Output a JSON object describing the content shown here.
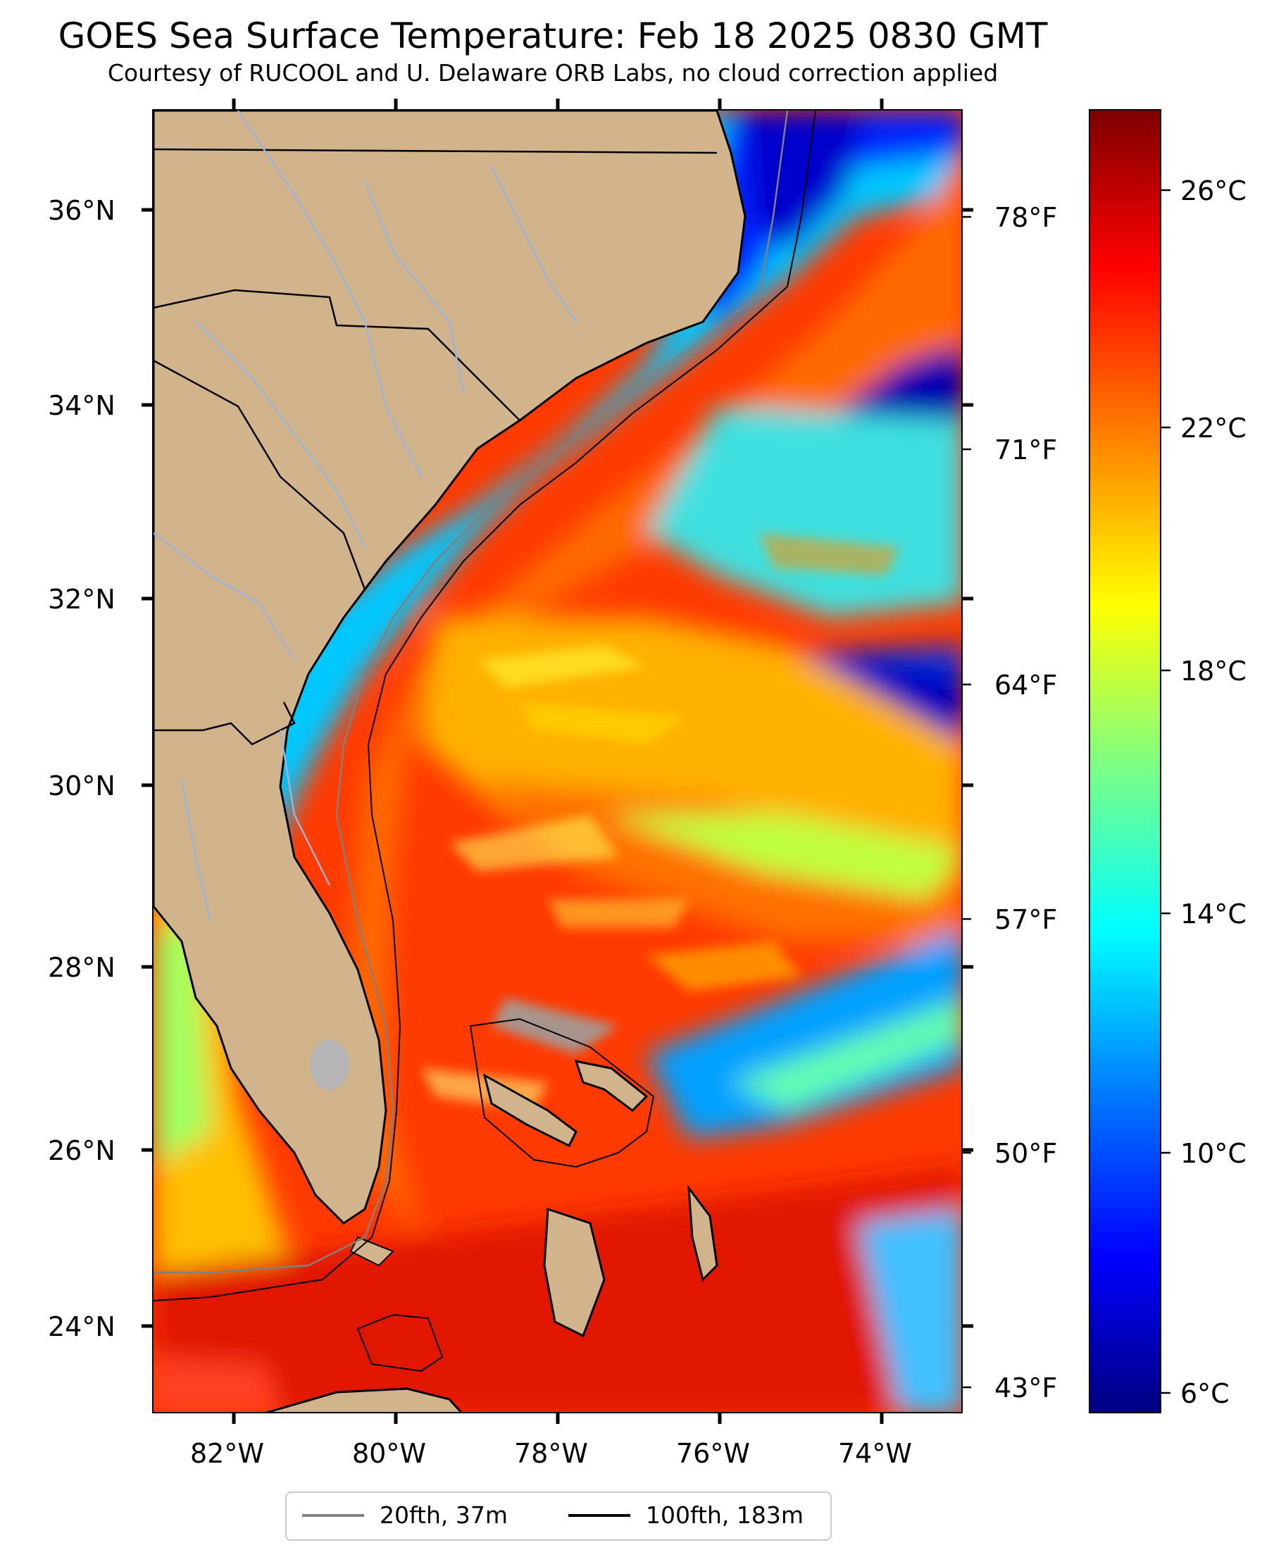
{
  "title": "GOES Sea Surface Temperature: Feb 18 2025 0830 GMT",
  "subtitle": "Courtesy of RUCOOL and U. Delaware ORB Labs, no cloud correction applied",
  "lat_ticks": [
    "36°N",
    "34°N",
    "32°N",
    "30°N",
    "28°N",
    "26°N",
    "24°N"
  ],
  "lon_ticks": [
    "82°W",
    "80°W",
    "78°W",
    "76°W",
    "74°W"
  ],
  "fahrenheit_ticks": [
    "78°F",
    "71°F",
    "64°F",
    "57°F",
    "50°F",
    "43°F"
  ],
  "colorbar": {
    "labels": [
      "26°C",
      "22°C",
      "18°C",
      "14°C",
      "10°C",
      "6°C"
    ],
    "min_c": 5.5,
    "max_c": 27.5,
    "colormap": "jet"
  },
  "legend": {
    "items": [
      {
        "label": "20fth, 37m",
        "color": "#808080"
      },
      {
        "label": "100fth, 183m",
        "color": "#000000"
      }
    ]
  },
  "colors": {
    "land": "#d2b48c",
    "river": "#9db4d8",
    "state_border": "#000000"
  }
}
